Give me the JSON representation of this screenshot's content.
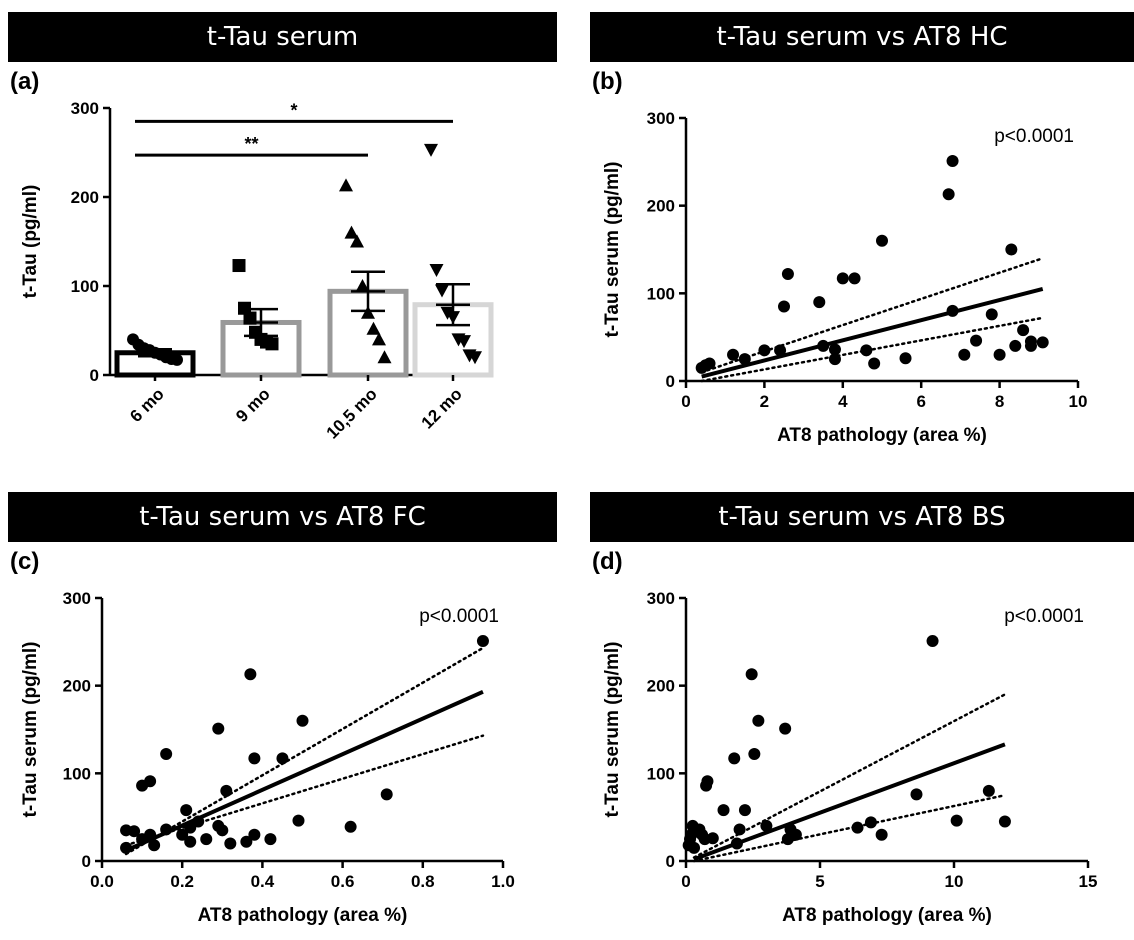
{
  "chart_data": [
    {
      "id": "a",
      "panel_label": "(a)",
      "title": "t-Tau serum",
      "type": "bar",
      "ylabel": "t-Tau (pg/ml)",
      "ylim": [
        0,
        300
      ],
      "yticks": [
        0,
        100,
        200,
        300
      ],
      "categories": [
        "6 mo",
        "9 mo",
        "10,5 mo",
        "12 mo"
      ],
      "means": [
        25,
        59,
        94,
        79
      ],
      "sem": [
        4,
        15,
        22,
        23
      ],
      "colors": [
        "#000000",
        "#999999",
        "#999999",
        "#d6d6d6"
      ],
      "markers": [
        "circle",
        "square",
        "triangle-up",
        "triangle-down"
      ],
      "points": [
        [
          40,
          34,
          30,
          28,
          25,
          23,
          20,
          18,
          17
        ],
        [
          123,
          75,
          64,
          48,
          40,
          37,
          35
        ],
        [
          213,
          160,
          150,
          100,
          70,
          52,
          40,
          20
        ],
        [
          253,
          118,
          95,
          70,
          65,
          40,
          38,
          22,
          20
        ]
      ],
      "significance": [
        {
          "from": 0,
          "to": 3,
          "label": "*",
          "y": 285
        },
        {
          "from": 0,
          "to": 2,
          "label": "**",
          "y": 247
        }
      ]
    },
    {
      "id": "b",
      "panel_label": "(b)",
      "title": "t-Tau serum vs AT8 HC",
      "type": "scatter",
      "xlabel": "AT8 pathology (area %)",
      "ylabel": "t-Tau serum (pg/ml)",
      "xlim": [
        0,
        10
      ],
      "xticks": [
        0,
        2,
        4,
        6,
        8,
        10
      ],
      "ylim": [
        0,
        300
      ],
      "yticks": [
        0,
        100,
        200,
        300
      ],
      "annotation": "p<0.0001",
      "points": [
        [
          0.4,
          15
        ],
        [
          0.5,
          18
        ],
        [
          0.6,
          20
        ],
        [
          1.2,
          30
        ],
        [
          1.5,
          25
        ],
        [
          2,
          35
        ],
        [
          2.4,
          35
        ],
        [
          2.5,
          85
        ],
        [
          2.6,
          122
        ],
        [
          3.4,
          90
        ],
        [
          3.5,
          40
        ],
        [
          3.8,
          36
        ],
        [
          3.8,
          25
        ],
        [
          4,
          117
        ],
        [
          4.3,
          117
        ],
        [
          4.6,
          35
        ],
        [
          4.8,
          20
        ],
        [
          5,
          160
        ],
        [
          5.6,
          26
        ],
        [
          6.7,
          213
        ],
        [
          6.8,
          251
        ],
        [
          6.8,
          80
        ],
        [
          7.1,
          30
        ],
        [
          7.4,
          46
        ],
        [
          7.8,
          76
        ],
        [
          8,
          30
        ],
        [
          8.3,
          150
        ],
        [
          8.4,
          40
        ],
        [
          8.6,
          58
        ],
        [
          8.8,
          45
        ],
        [
          8.8,
          40
        ],
        [
          9.1,
          44
        ]
      ],
      "fit": {
        "x": [
          0.4,
          9.1
        ],
        "y": [
          5,
          105
        ]
      },
      "ci_upper": {
        "x": [
          0.4,
          9.1
        ],
        "y": [
          10,
          140
        ]
      },
      "ci_lower": {
        "x": [
          0.4,
          9.1
        ],
        "y": [
          0,
          72
        ]
      }
    },
    {
      "id": "c",
      "panel_label": "(c)",
      "title": "t-Tau serum vs AT8 FC",
      "type": "scatter",
      "xlabel": "AT8 pathology (area %)",
      "ylabel": "t-Tau serum (pg/ml)",
      "xlim": [
        0,
        1.0
      ],
      "xticks": [
        "0.0",
        "0.2",
        "0.4",
        "0.6",
        "0.8",
        "1.0"
      ],
      "ylim": [
        0,
        300
      ],
      "yticks": [
        0,
        100,
        200,
        300
      ],
      "annotation": "p<0.0001",
      "points": [
        [
          0.06,
          15
        ],
        [
          0.06,
          35
        ],
        [
          0.08,
          34
        ],
        [
          0.1,
          86
        ],
        [
          0.1,
          25
        ],
        [
          0.12,
          91
        ],
        [
          0.12,
          30
        ],
        [
          0.13,
          18
        ],
        [
          0.16,
          122
        ],
        [
          0.16,
          36
        ],
        [
          0.2,
          30
        ],
        [
          0.21,
          58
        ],
        [
          0.22,
          38
        ],
        [
          0.22,
          22
        ],
        [
          0.24,
          45
        ],
        [
          0.26,
          25
        ],
        [
          0.29,
          151
        ],
        [
          0.29,
          40
        ],
        [
          0.3,
          35
        ],
        [
          0.31,
          80
        ],
        [
          0.32,
          20
        ],
        [
          0.36,
          22
        ],
        [
          0.37,
          213
        ],
        [
          0.38,
          117
        ],
        [
          0.38,
          30
        ],
        [
          0.42,
          25
        ],
        [
          0.45,
          117
        ],
        [
          0.49,
          46
        ],
        [
          0.5,
          160
        ],
        [
          0.62,
          39
        ],
        [
          0.71,
          76
        ],
        [
          0.95,
          251
        ]
      ],
      "fit": {
        "x": [
          0.06,
          0.95
        ],
        "y": [
          12,
          193
        ]
      },
      "ci_upper": {
        "x": [
          0.06,
          0.95
        ],
        "y": [
          8,
          243
        ]
      },
      "ci_lower": {
        "x": [
          0.06,
          0.95
        ],
        "y": [
          18,
          143
        ]
      }
    },
    {
      "id": "d",
      "panel_label": "(d)",
      "title": "t-Tau serum vs AT8 BS",
      "type": "scatter",
      "xlabel": "AT8 pathology (area %)",
      "ylabel": "t-Tau serum (pg/ml)",
      "xlim": [
        0,
        15
      ],
      "xticks": [
        0,
        5,
        10,
        15
      ],
      "ylim": [
        0,
        300
      ],
      "yticks": [
        0,
        100,
        200,
        300
      ],
      "annotation": "p<0.0001",
      "points": [
        [
          0.1,
          18
        ],
        [
          0.15,
          25
        ],
        [
          0.2,
          30
        ],
        [
          0.25,
          40
        ],
        [
          0.3,
          15
        ],
        [
          0.4,
          35
        ],
        [
          0.5,
          36
        ],
        [
          0.6,
          30
        ],
        [
          0.7,
          25
        ],
        [
          0.75,
          86
        ],
        [
          0.8,
          91
        ],
        [
          1,
          26
        ],
        [
          1.4,
          58
        ],
        [
          1.8,
          117
        ],
        [
          1.9,
          20
        ],
        [
          2,
          36
        ],
        [
          2.2,
          58
        ],
        [
          2.45,
          213
        ],
        [
          2.55,
          122
        ],
        [
          2.7,
          160
        ],
        [
          3,
          40
        ],
        [
          3.7,
          151
        ],
        [
          3.8,
          25
        ],
        [
          3.9,
          36
        ],
        [
          4.1,
          30
        ],
        [
          6.4,
          38
        ],
        [
          6.9,
          44
        ],
        [
          7.3,
          30
        ],
        [
          8.6,
          76
        ],
        [
          9.2,
          251
        ],
        [
          10.1,
          46
        ],
        [
          11.3,
          80
        ],
        [
          11.9,
          45
        ]
      ],
      "fit": {
        "x": [
          0.3,
          11.9
        ],
        "y": [
          2,
          133
        ]
      },
      "ci_upper": {
        "x": [
          0.3,
          11.9
        ],
        "y": [
          4,
          190
        ]
      },
      "ci_lower": {
        "x": [
          0.3,
          11.9
        ],
        "y": [
          0,
          75
        ]
      }
    }
  ]
}
